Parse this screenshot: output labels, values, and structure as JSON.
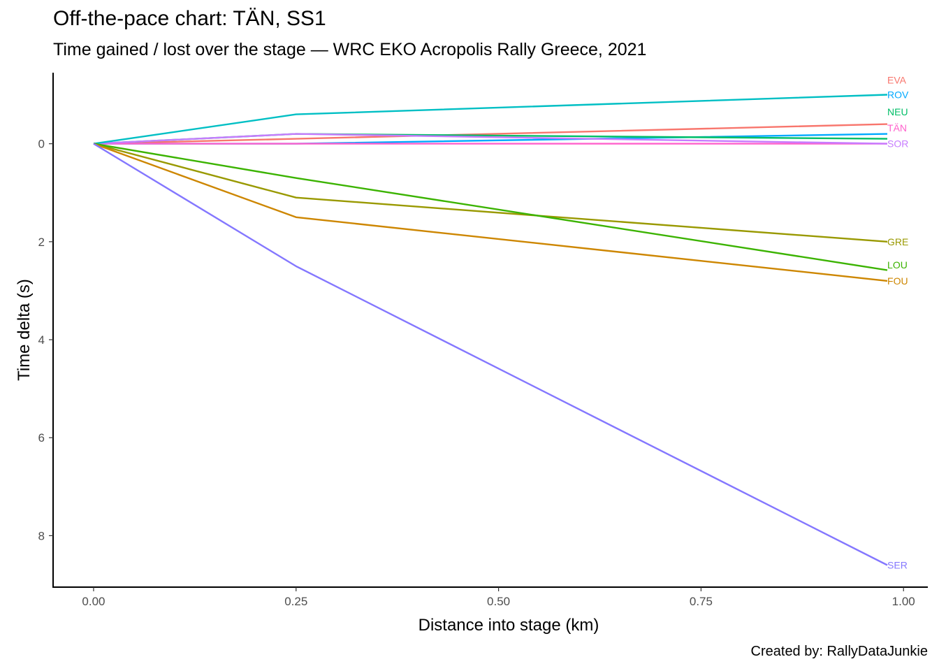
{
  "title": "Off-the-pace chart: TÄN, SS1",
  "subtitle": "Time gained / lost over the stage — WRC EKO Acropolis Rally Greece, 2021",
  "caption": "Created by: RallyDataJunkie",
  "chart_data": {
    "type": "line",
    "xlabel": "Distance into stage (km)",
    "ylabel": "Time delta (s)",
    "xlim": [
      -0.05,
      1.03
    ],
    "ylim": [
      -1.45,
      9.05
    ],
    "y_reversed": true,
    "xticks": [
      0.0,
      0.25,
      0.5,
      0.75,
      1.0
    ],
    "xtick_labels": [
      "0.00",
      "0.25",
      "0.50",
      "0.75",
      "1.00"
    ],
    "yticks": [
      0,
      2,
      4,
      6,
      8
    ],
    "ytick_labels": [
      "0",
      "2",
      "4",
      "6",
      "8"
    ],
    "grid": false,
    "legend": "direct labels at line ends",
    "x": [
      0.0,
      0.25,
      0.98
    ],
    "series": [
      {
        "name": "EVA",
        "color": "#F8766D",
        "values": [
          0,
          -0.1,
          -0.4
        ]
      },
      {
        "name": "ROV",
        "color": "#00A9FF",
        "values": [
          0,
          0.0,
          -0.2
        ]
      },
      {
        "name": "NEU",
        "color": "#00BE67",
        "values": [
          0,
          -0.2,
          -0.1
        ]
      },
      {
        "name": "TÄN",
        "color": "#FF61CC",
        "values": [
          0,
          0.0,
          0.0
        ]
      },
      {
        "name": "SOR",
        "color": "#C77CFF",
        "values": [
          0,
          -0.2,
          0.0
        ]
      },
      {
        "name": "",
        "color": "#00BFC4",
        "values": [
          0,
          -0.6,
          -1.0
        ]
      },
      {
        "name": "GRE",
        "color": "#999900",
        "values": [
          0,
          1.1,
          2.0
        ]
      },
      {
        "name": "LOU",
        "color": "#3BB300",
        "values": [
          0,
          0.7,
          2.58
        ]
      },
      {
        "name": "FOU",
        "color": "#CD8600",
        "values": [
          0,
          1.5,
          2.8
        ]
      },
      {
        "name": "SER",
        "color": "#8477FF",
        "values": [
          0,
          2.5,
          8.6
        ]
      }
    ],
    "end_labels": [
      {
        "text": "EVA",
        "color": "#F8766D",
        "y": -1.3
      },
      {
        "text": "ROV",
        "color": "#00A9FF",
        "y": -1.0
      },
      {
        "text": "NEU",
        "color": "#00BE67",
        "y": -0.65
      },
      {
        "text": "TÄN",
        "color": "#FF61CC",
        "y": -0.32
      },
      {
        "text": "SOR",
        "color": "#C77CFF",
        "y": 0.0
      },
      {
        "text": "GRE",
        "color": "#999900",
        "y": 2.0
      },
      {
        "text": "LOU",
        "color": "#3BB300",
        "y": 2.47
      },
      {
        "text": "FOU",
        "color": "#CD8600",
        "y": 2.8
      },
      {
        "text": "SER",
        "color": "#8477FF",
        "y": 8.6
      }
    ]
  }
}
